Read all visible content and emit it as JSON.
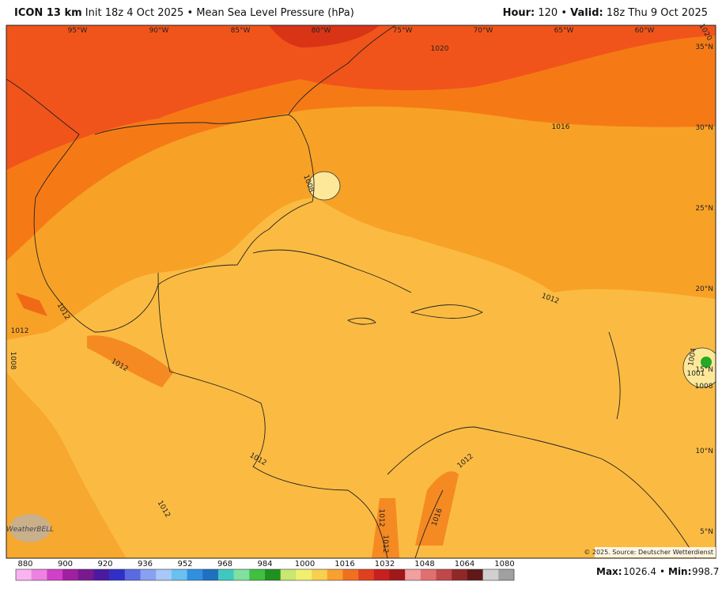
{
  "header": {
    "model": "ICON 13 km",
    "init": "Init 18z 4 Oct 2025",
    "field": "Mean Sea Level Pressure (hPa)",
    "hour_label": "Hour:",
    "hour": "120",
    "valid_label": "Valid:",
    "valid": "18z Thu 9 Oct 2025"
  },
  "map": {
    "longitudes": [
      "95°W",
      "90°W",
      "85°W",
      "80°W",
      "75°W",
      "70°W",
      "65°W",
      "60°W"
    ],
    "latitudes": [
      "35°N",
      "30°N",
      "25°N",
      "20°N",
      "15°N",
      "10°N",
      "5°N"
    ],
    "contour_labels": [
      1020,
      1016,
      1008,
      1012,
      1012,
      1012,
      1008,
      1012,
      1004,
      1001,
      1008,
      1012,
      1012,
      1012,
      1012,
      1016,
      1012,
      1020
    ],
    "credit": "© 2025. Source: Deutscher Wetterdienst",
    "logo": "WeatherBELL"
  },
  "colorbar": {
    "labels": [
      880,
      900,
      920,
      936,
      952,
      968,
      984,
      1000,
      1016,
      1032,
      1048,
      1064,
      1080
    ]
  },
  "footer": {
    "max_label": "Max:",
    "max": "1026.4",
    "min_label": "Min:",
    "min": "998.7"
  }
}
